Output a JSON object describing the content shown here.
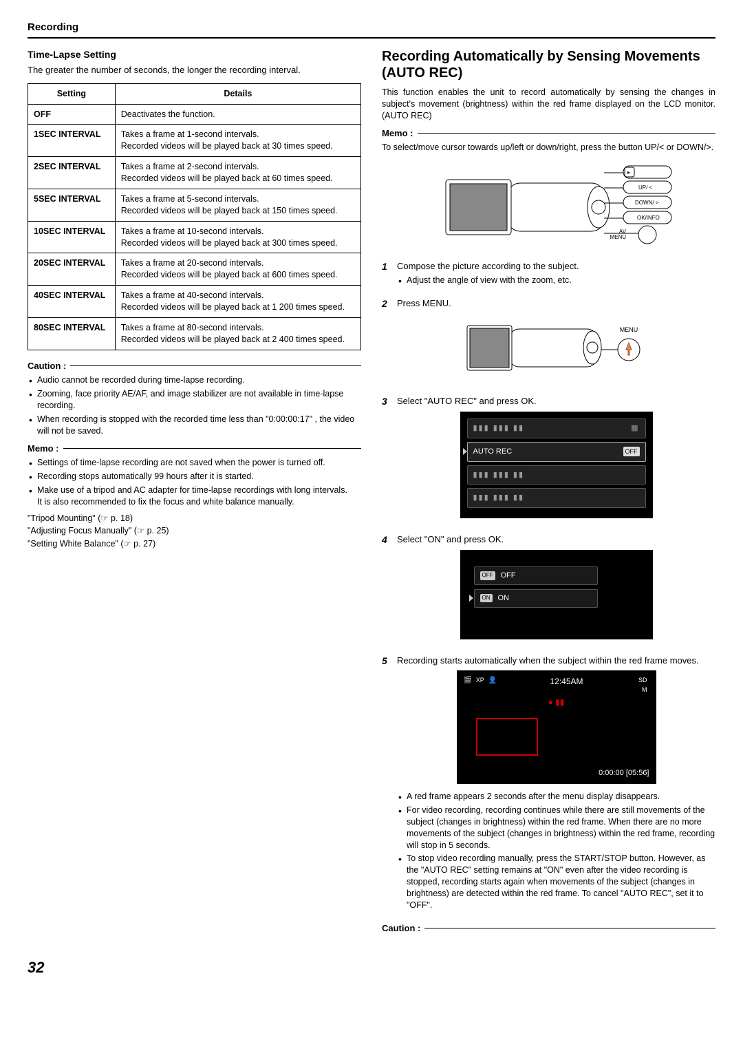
{
  "header": "Recording",
  "page_number": "32",
  "left": {
    "title": "Time-Lapse Setting",
    "intro": "The greater the number of seconds, the longer the recording interval.",
    "table": {
      "headers": [
        "Setting",
        "Details"
      ],
      "rows": [
        [
          "OFF",
          "Deactivates the function."
        ],
        [
          "1SEC INTERVAL",
          "Takes a frame at 1-second intervals.\nRecorded videos will be played back at 30 times speed."
        ],
        [
          "2SEC INTERVAL",
          "Takes a frame at 2-second intervals.\nRecorded videos will be played back at 60 times speed."
        ],
        [
          "5SEC INTERVAL",
          "Takes a frame at 5-second intervals.\nRecorded videos will be played back at 150 times speed."
        ],
        [
          "10SEC INTERVAL",
          "Takes a frame at 10-second intervals.\nRecorded videos will be played back at 300 times speed."
        ],
        [
          "20SEC INTERVAL",
          "Takes a frame at 20-second intervals.\nRecorded videos will be played back at 600 times speed."
        ],
        [
          "40SEC INTERVAL",
          "Takes a frame at 40-second intervals.\nRecorded videos will be played back at 1 200 times speed."
        ],
        [
          "80SEC INTERVAL",
          "Takes a frame at 80-second intervals.\nRecorded videos will be played back at 2 400 times speed."
        ]
      ]
    },
    "caution_label": "Caution :",
    "caution": [
      "Audio cannot be recorded during time-lapse recording.",
      "Zooming, face priority AE/AF, and image stabilizer are not available in time-lapse recording.",
      "When recording is stopped with the recorded time less than \"0:00:00:17\" , the video will not be saved."
    ],
    "memo_label": "Memo :",
    "memo": [
      "Settings of time-lapse recording are not saved when the power is turned off.",
      "Recording stops automatically 99 hours after it is started.",
      "Make use of a tripod and AC adapter for time-lapse recordings with long intervals.\nIt is also recommended to fix the focus and white balance manually."
    ],
    "refs": [
      "\"Tripod Mounting\" (☞ p. 18)",
      "\"Adjusting Focus Manually\" (☞ p. 25)",
      "\"Setting White Balance\" (☞ p. 27)"
    ]
  },
  "right": {
    "title": "Recording Automatically by Sensing Movements (AUTO REC)",
    "desc": "This function enables the unit to record automatically by sensing the changes in subject's movement (brightness) within the red frame displayed on the LCD monitor. (AUTO REC)",
    "memo_label": "Memo :",
    "memo_text": "To select/move cursor towards up/left or down/right, press the button UP/< or DOWN/>.",
    "button_labels": {
      "play": "▸",
      "up": "UP/ <",
      "down": "DOWN/ >",
      "okinfo": "OK/INFO",
      "avmenu": "AV\nMENU",
      "menu": "MENU"
    },
    "steps": [
      {
        "n": "1",
        "text": "Compose the picture according to the subject.",
        "sub": [
          "Adjust the angle of view with the zoom, etc."
        ]
      },
      {
        "n": "2",
        "text": "Press MENU."
      },
      {
        "n": "3",
        "text": "Select \"AUTO REC\" and press OK."
      },
      {
        "n": "4",
        "text": "Select \"ON\" and press OK."
      },
      {
        "n": "5",
        "text": "Recording starts automatically when the subject within the red frame moves."
      }
    ],
    "menu_screen": {
      "dim": "▮▮▮ ▮▮▮ ▮▮",
      "label": "AUTO REC",
      "tag": "OFF"
    },
    "onoff": {
      "off_tag": "OFF",
      "off_label": "OFF",
      "on_tag": "ON",
      "on_label": "ON"
    },
    "rec": {
      "time": "12:45AM",
      "xp": "XP",
      "sd": "SD",
      "m": "M",
      "counter": "0:00:00 [05:56]"
    },
    "final_bullets": [
      "A red frame appears 2 seconds after the menu display disappears.",
      "For video recording, recording continues while there are still movements of the subject (changes in brightness) within the red frame. When there are no more movements of the subject (changes in brightness) within the red frame, recording will stop in 5 seconds.",
      "To stop video recording manually, press the START/STOP button. However, as the \"AUTO REC\" setting remains at \"ON\" even after the video recording is stopped, recording starts again when movements of the subject (changes in brightness) are detected within the red frame. To cancel \"AUTO REC\", set it to \"OFF\"."
    ],
    "caution_label": "Caution :"
  }
}
